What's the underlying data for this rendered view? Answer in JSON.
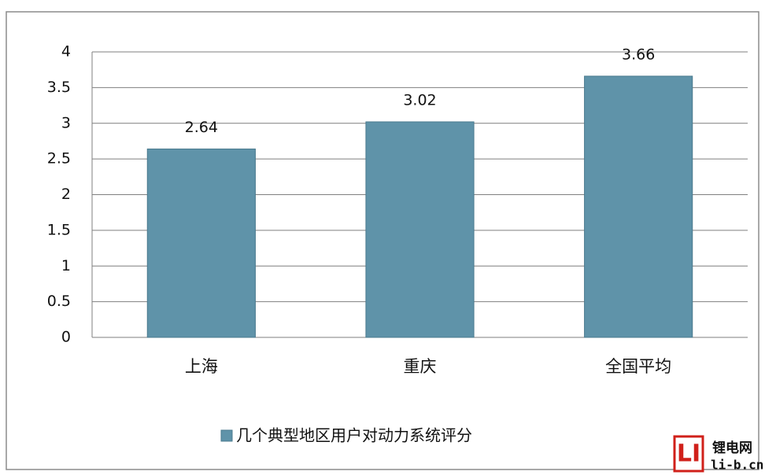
{
  "chart_data": {
    "type": "bar",
    "categories": [
      "上海",
      "重庆",
      "全国平均"
    ],
    "series": [
      {
        "name": "几个典型地区用户对动力系统评分",
        "color": "#5f93a9",
        "values": [
          2.64,
          3.02,
          3.66
        ]
      }
    ],
    "ylim": [
      0,
      4
    ],
    "yticks": [
      0,
      0.5,
      1,
      1.5,
      2,
      2.5,
      3,
      3.5,
      4
    ],
    "grid": true,
    "legend": "bottom"
  },
  "watermark": {
    "logo": "LI",
    "name": "锂电网",
    "url": "li-b.cn"
  }
}
